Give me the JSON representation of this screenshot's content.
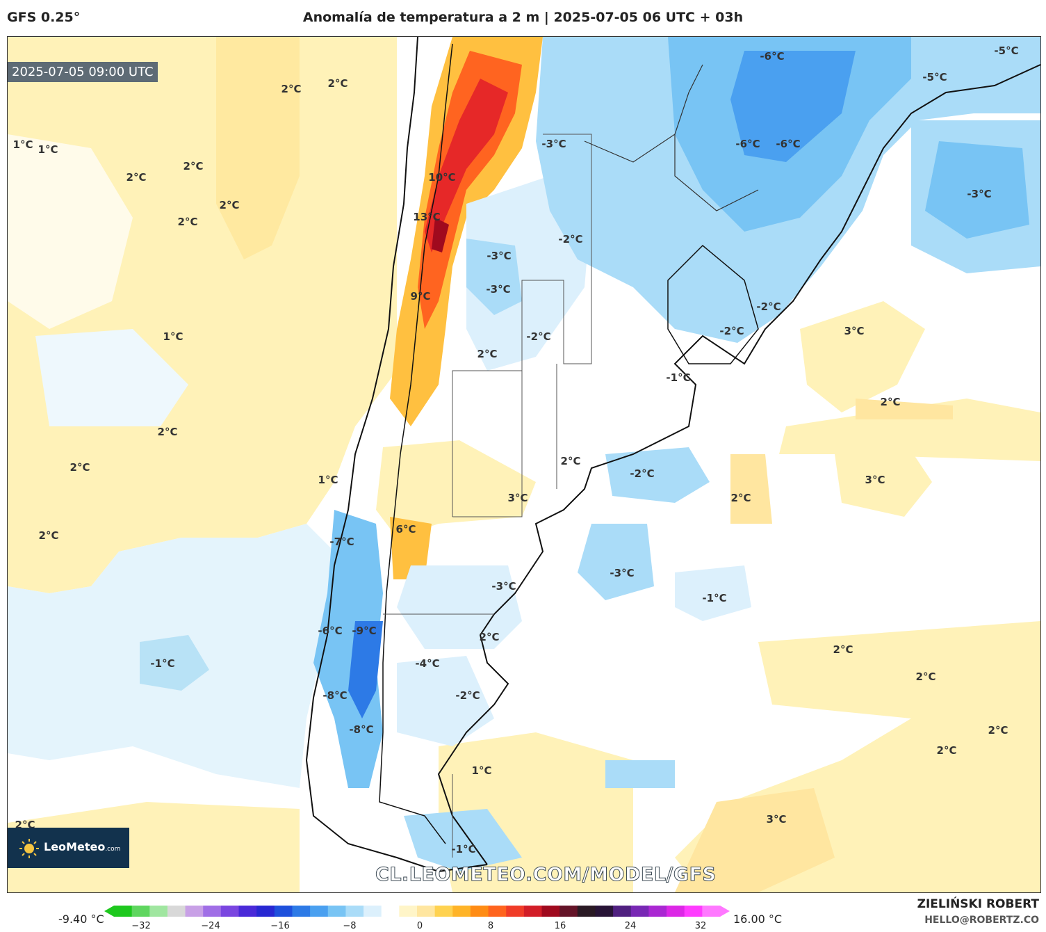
{
  "header": {
    "model": "GFS 0.25°",
    "title": "Anomalía de temperatura a 2 m | 2025-07-05 06 UTC + 03h"
  },
  "map": {
    "valid_time": "2025-07-05 09:00 UTC",
    "watermark": "CL.LEOMETEO.COM/MODEL/GFS",
    "logo": {
      "name": "LeoMeteo",
      "suffix": ".com"
    },
    "labels": [
      "2°C",
      "2°C",
      "1°C",
      "1°C",
      "2°C",
      "2°C",
      "2°C",
      "2°C",
      "1°C",
      "2°C",
      "2°C",
      "1°C",
      "2°C",
      "-1°C",
      "2°C",
      "10°C",
      "13°C",
      "9°C",
      "-3°C",
      "-3°C",
      "-3°C",
      "-2°C",
      "-2°C",
      "2°C",
      "-6°C",
      "-6°C",
      "-6°C",
      "-5°C",
      "-5°C",
      "-3°C",
      "-2°C",
      "-2°C",
      "3°C",
      "-1°C",
      "2°C",
      "2°C",
      "-2°C",
      "3°C",
      "3°C",
      "2°C",
      "6°C",
      "-7°C",
      "-3°C",
      "-3°C",
      "-1°C",
      "-6°C",
      "-9°C",
      "-4°C",
      "2°C",
      "-8°C",
      "-2°C",
      "-8°C",
      "2°C",
      "2°C",
      "2°C",
      "2°C",
      "1°C",
      "3°C",
      "-1°C"
    ]
  },
  "colorbar": {
    "min_label": "-9.40 °C",
    "max_label": "16.00 °C",
    "ticks": [
      "−32",
      "−24",
      "−16",
      "−8",
      "0",
      "8",
      "16",
      "24",
      "32"
    ],
    "colors": [
      "#1ec81e",
      "#5fd65f",
      "#a0e6a0",
      "#d8d8d8",
      "#c8a0e6",
      "#a06ee6",
      "#7a46e0",
      "#4a2ad8",
      "#2828d2",
      "#1e50dc",
      "#2d7ae6",
      "#4aa0f0",
      "#78c4f4",
      "#aadcf8",
      "#dcf0fc",
      "#ffffff",
      "#fff5c8",
      "#ffe6a0",
      "#ffd250",
      "#ffb428",
      "#ff8c14",
      "#ff641e",
      "#f03c28",
      "#d21e28",
      "#a00a1e",
      "#641428",
      "#2a1a24",
      "#281436",
      "#502080",
      "#7828b4",
      "#aa28d2",
      "#dc28e6",
      "#ff3cff",
      "#ff78ff"
    ]
  },
  "author": {
    "name": "ZIELIŃSKI ROBERT",
    "email": "HELLO@ROBERTZ.CO"
  }
}
